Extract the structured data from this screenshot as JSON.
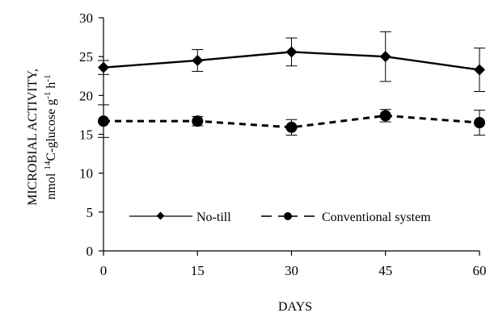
{
  "chart_data": {
    "type": "line",
    "xlabel": "DAYS",
    "ylabel_line1": "MICROBIAL ACTIVITY,",
    "ylabel_line2_prefix": "nmol ",
    "ylabel_sup1": "14",
    "ylabel_line2_mid": "C-glucose g",
    "ylabel_sup2": "-1",
    "ylabel_line2_end": " h",
    "ylabel_sup3": "-1",
    "x": [
      0,
      15,
      30,
      45,
      60
    ],
    "xlim": [
      0,
      60
    ],
    "ylim": [
      0,
      30
    ],
    "x_ticks": [
      "0",
      "15",
      "30",
      "45",
      "60"
    ],
    "y_ticks": [
      "0",
      "5",
      "10",
      "15",
      "20",
      "25",
      "30"
    ],
    "grid": false,
    "legend_position": "bottom",
    "series": [
      {
        "name": "No-till",
        "values": [
          23.6,
          24.5,
          25.6,
          25.0,
          23.3
        ],
        "error": [
          0.9,
          1.4,
          1.8,
          3.2,
          2.8
        ],
        "marker": "diamond",
        "line": "solid"
      },
      {
        "name": "Conventional system",
        "values": [
          16.7,
          16.7,
          15.9,
          17.4,
          16.5
        ],
        "error": [
          2.1,
          0.6,
          1.0,
          0.8,
          1.6
        ],
        "marker": "circle",
        "line": "dashed"
      }
    ]
  }
}
